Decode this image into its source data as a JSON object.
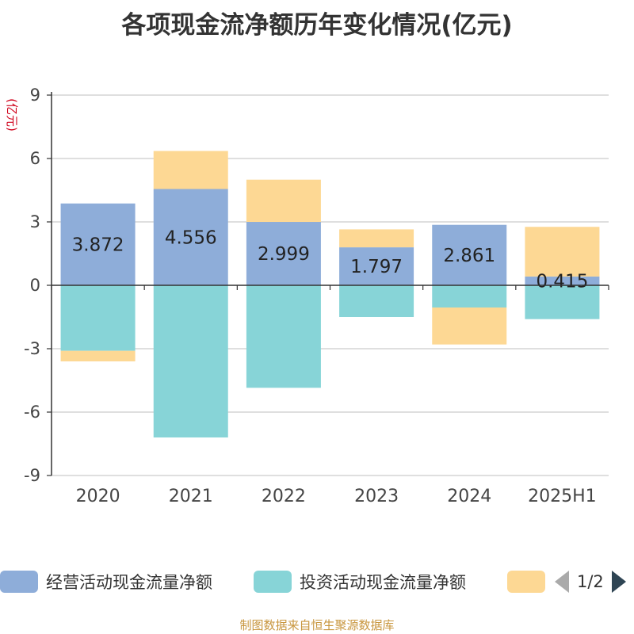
{
  "chart_data": {
    "type": "bar",
    "stacked": true,
    "title": "各项现金流净额历年变化情况(亿元)",
    "ylabel": "(亿元)",
    "ylim": [
      -9,
      9
    ],
    "yticks": [
      -9,
      -6,
      -3,
      0,
      3,
      6,
      9
    ],
    "ytick_labels": [
      "-9",
      "-6",
      "-3",
      "0",
      "3",
      "6",
      "9"
    ],
    "grid": true,
    "categories": [
      "2020",
      "2021",
      "2022",
      "2023",
      "2024",
      "2025H1"
    ],
    "series": [
      {
        "name": "经营活动现金流量净额",
        "color": "#8eadd9",
        "values": [
          3.872,
          4.556,
          2.999,
          1.797,
          2.861,
          0.415
        ],
        "labels": [
          "3.872",
          "4.556",
          "2.999",
          "1.797",
          "2.861",
          "0.415"
        ]
      },
      {
        "name": "投资活动现金流量净额",
        "color": "#87d4d7",
        "values": [
          -3.1,
          -7.2,
          -4.85,
          -1.5,
          -1.05,
          -1.6
        ]
      },
      {
        "name": "",
        "color": "#fdd894",
        "values": [
          -0.5,
          1.8,
          2.0,
          0.85,
          -1.75,
          2.35
        ]
      }
    ]
  },
  "legend": {
    "items": [
      {
        "label": "经营活动现金流量净额",
        "color": "#8eadd9"
      },
      {
        "label": "投资活动现金流量净额",
        "color": "#87d4d7"
      },
      {
        "label": "",
        "color": "#fdd894"
      }
    ],
    "page_text": "1/2"
  },
  "source": "制图数据来自恒生聚源数据库"
}
